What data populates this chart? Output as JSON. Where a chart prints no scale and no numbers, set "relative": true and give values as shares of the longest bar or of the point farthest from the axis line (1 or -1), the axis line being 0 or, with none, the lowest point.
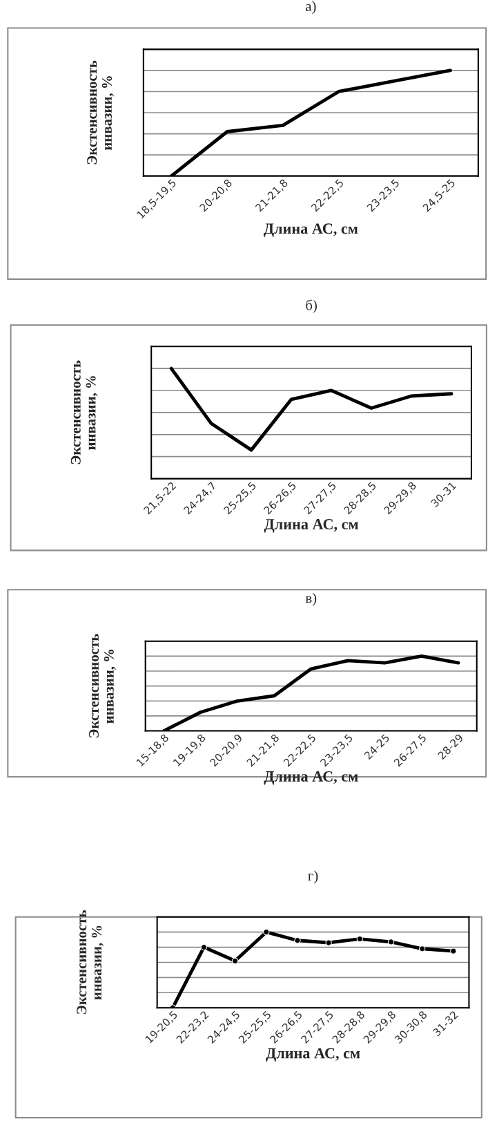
{
  "chart_data": [
    {
      "type": "line",
      "title": "а)",
      "xlabel": "Длина АС, см",
      "ylabel": "Экстенсивность\nинвазии, %",
      "relative": true,
      "grid": "y",
      "legend": false,
      "marker": "none",
      "categories": [
        "18,5-19,5",
        "20-20,8",
        "21-21,8",
        "22-22,5",
        "23-23,5",
        "24,5-25"
      ],
      "series": [
        {
          "color": "#000000",
          "values": [
            0,
            0.42,
            0.48,
            0.8,
            0.9,
            1
          ]
        }
      ]
    },
    {
      "type": "line",
      "title": "б)",
      "xlabel": "Длина АС, см",
      "ylabel": "Экстенсивность\nинвазии, %",
      "relative": true,
      "grid": "y",
      "legend": false,
      "marker": "none",
      "categories": [
        "21,5-22",
        "24-24,7",
        "25-25,5",
        "26-26,5",
        "27-27,5",
        "28-28,5",
        "29-29,8",
        "30-31"
      ],
      "series": [
        {
          "color": "#000000",
          "values": [
            1,
            0.5,
            0.26,
            0.72,
            0.8,
            0.64,
            0.75,
            0.77
          ]
        }
      ]
    },
    {
      "type": "line",
      "title": "в)",
      "xlabel": "Длина АС, см",
      "ylabel": "Экстенсивность\nинвазии, %",
      "relative": true,
      "grid": "y",
      "legend": false,
      "marker": "none",
      "categories": [
        "15-18,8",
        "19-19,8",
        "20-20,9",
        "21-21,8",
        "22-22,5",
        "23-23,5",
        "24-25",
        "26-27,5",
        "28-29"
      ],
      "series": [
        {
          "color": "#000000",
          "values": [
            0,
            0.25,
            0.4,
            0.47,
            0.83,
            0.94,
            0.91,
            1,
            0.91
          ]
        }
      ]
    },
    {
      "type": "line",
      "title": "г)",
      "xlabel": "Длина АС, см",
      "ylabel": "Экстенсивность\nинвазии, %",
      "relative": true,
      "grid": "y",
      "legend": false,
      "marker": "circle",
      "categories": [
        "19-20,5",
        "22-23,2",
        "24-24,5",
        "25-25,5",
        "26-26,5",
        "27-27,5",
        "28-28,8",
        "29-29,8",
        "30-30,8",
        "31-32"
      ],
      "series": [
        {
          "color": "#000000",
          "values": [
            0,
            0.8,
            0.62,
            1,
            0.89,
            0.86,
            0.91,
            0.87,
            0.78,
            0.75
          ]
        }
      ]
    }
  ]
}
